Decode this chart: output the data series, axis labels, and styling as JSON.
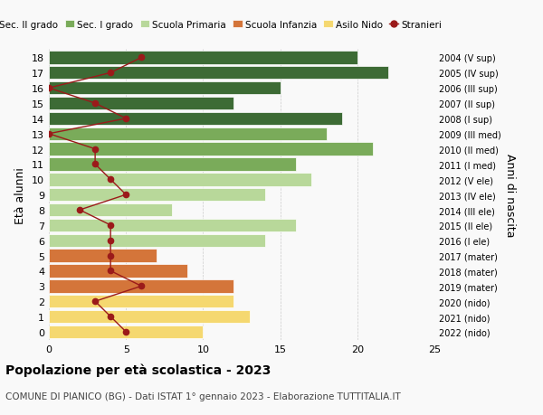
{
  "ages": [
    18,
    17,
    16,
    15,
    14,
    13,
    12,
    11,
    10,
    9,
    8,
    7,
    6,
    5,
    4,
    3,
    2,
    1,
    0
  ],
  "right_labels": [
    "2004 (V sup)",
    "2005 (IV sup)",
    "2006 (III sup)",
    "2007 (II sup)",
    "2008 (I sup)",
    "2009 (III med)",
    "2010 (II med)",
    "2011 (I med)",
    "2012 (V ele)",
    "2013 (IV ele)",
    "2014 (III ele)",
    "2015 (II ele)",
    "2016 (I ele)",
    "2017 (mater)",
    "2018 (mater)",
    "2019 (mater)",
    "2020 (nido)",
    "2021 (nido)",
    "2022 (nido)"
  ],
  "bar_values": [
    20,
    22,
    15,
    12,
    19,
    18,
    21,
    16,
    17,
    14,
    8,
    16,
    14,
    7,
    9,
    12,
    12,
    13,
    10
  ],
  "bar_colors": [
    "#3d6b35",
    "#3d6b35",
    "#3d6b35",
    "#3d6b35",
    "#3d6b35",
    "#7aab5a",
    "#7aab5a",
    "#7aab5a",
    "#b8d89a",
    "#b8d89a",
    "#b8d89a",
    "#b8d89a",
    "#b8d89a",
    "#d4753a",
    "#d4753a",
    "#d4753a",
    "#f5d870",
    "#f5d870",
    "#f5d870"
  ],
  "stranieri_values": [
    6,
    4,
    0,
    3,
    5,
    0,
    3,
    3,
    4,
    5,
    2,
    4,
    4,
    4,
    4,
    6,
    3,
    4,
    5
  ],
  "legend_labels": [
    "Sec. II grado",
    "Sec. I grado",
    "Scuola Primaria",
    "Scuola Infanzia",
    "Asilo Nido",
    "Stranieri"
  ],
  "legend_colors": [
    "#3d6b35",
    "#7aab5a",
    "#b8d89a",
    "#d4753a",
    "#f5d870",
    "#9b1a1a"
  ],
  "ylabel_left": "Età alunni",
  "ylabel_right": "Anni di nascita",
  "xlim": [
    0,
    25
  ],
  "xticks": [
    0,
    5,
    10,
    15,
    20,
    25
  ],
  "title": "Popolazione per età scolastica - 2023",
  "subtitle": "COMUNE DI PIANICO (BG) - Dati ISTAT 1° gennaio 2023 - Elaborazione TUTTITALIA.IT",
  "bg_color": "#f9f9f9",
  "stranieri_color": "#9b1a1a",
  "bar_edgecolor": "white",
  "grid_color": "#cccccc"
}
